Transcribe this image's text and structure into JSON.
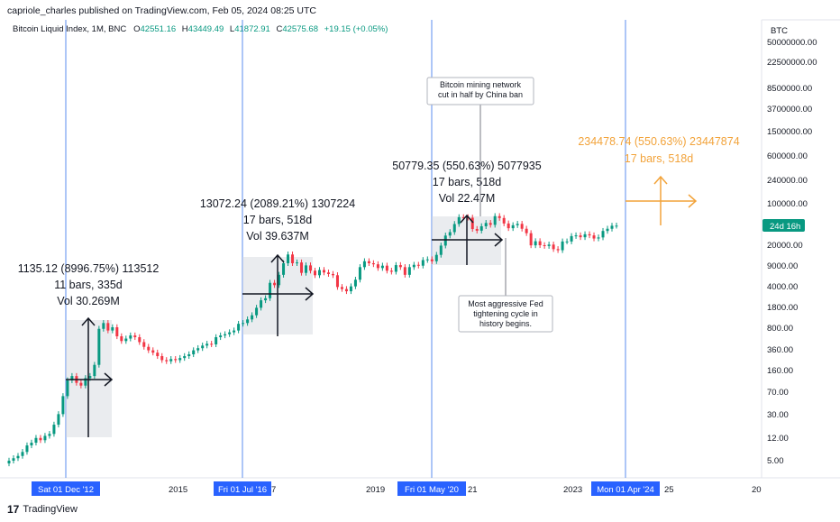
{
  "header": {
    "attribution": "capriole_charles published on TradingView.com, Feb 05, 2024 08:25 UTC"
  },
  "legend": {
    "symbol": "Bitcoin Liquid Index, 1M, BNC",
    "o_label": "O",
    "o_value": "42551.16",
    "h_label": "H",
    "h_value": "43449.49",
    "l_label": "L",
    "l_value": "41872.91",
    "c_label": "C",
    "c_value": "42575.68",
    "change": "+19.15 (+0.05%)"
  },
  "price_axis": {
    "unit": "BTC",
    "current_badge": "24d 16h"
  },
  "footer": {
    "logo_mark": "17",
    "logo_text": "TradingView"
  },
  "colors": {
    "up": "#089981",
    "down": "#f23645",
    "vline": "#5b8def",
    "orange": "#f2a33a",
    "badge": "#2962ff"
  },
  "chart_data": {
    "type": "candlestick",
    "y_scale": "log",
    "y_tick_labels": [
      "50000000.00",
      "22500000.00",
      "8500000.00",
      "3700000.00",
      "1500000.00",
      "600000.00",
      "240000.00",
      "100000.00",
      "20000.00",
      "9000.00",
      "4000.00",
      "1800.00",
      "800.00",
      "360.00",
      "160.00",
      "70.00",
      "30.00",
      "12.00",
      "5.00"
    ],
    "x_tick_labels": [
      "2015",
      "2019",
      "2023",
      "20"
    ],
    "x_cut_labels": [
      "7",
      "21",
      "25"
    ],
    "vertical_markers": [
      {
        "label": "Sat 01 Dec '12"
      },
      {
        "label": "Fri 01 Jul '16"
      },
      {
        "label": "Fri 01 May '20"
      },
      {
        "label": "Mon 01 Apr '24"
      }
    ],
    "annotations": [
      {
        "lines": [
          "1135.12 (8996.75%) 113512",
          "11 bars, 335d",
          "Vol 30.269M"
        ]
      },
      {
        "lines": [
          "13072.24 (2089.21%) 1307224",
          "17 bars, 518d",
          "Vol 39.637M"
        ]
      },
      {
        "lines": [
          "50779.35 (550.63%) 5077935",
          "17 bars, 518d",
          "Vol 22.47M"
        ]
      },
      {
        "lines": [
          "234478.74 (550.63%) 23447874",
          "17 bars, 518d"
        ],
        "projection": true
      }
    ],
    "notes": [
      {
        "lines": [
          "Bitcoin mining network",
          "cut in half by China ban"
        ]
      },
      {
        "lines": [
          "Most aggressive Fed",
          "tightening cycle in",
          "history begins."
        ]
      }
    ],
    "series_monthly_close": [
      5,
      5.5,
      6,
      7,
      9,
      10,
      12,
      11,
      13,
      14,
      20,
      30,
      60,
      110,
      130,
      100,
      90,
      120,
      130,
      200,
      800,
      1000,
      750,
      850,
      600,
      500,
      550,
      620,
      580,
      480,
      400,
      350,
      320,
      280,
      240,
      230,
      250,
      240,
      260,
      280,
      300,
      350,
      380,
      420,
      450,
      440,
      580,
      620,
      650,
      700,
      750,
      970,
      1000,
      1150,
      1350,
      1800,
      2400,
      2600,
      4700,
      4300,
      6400,
      10000,
      14000,
      10000,
      10300,
      6900,
      9200,
      7500,
      6300,
      7700,
      7000,
      6600,
      6300,
      4000,
      3700,
      3400,
      4100,
      5300,
      8600,
      10800,
      10000,
      9600,
      8300,
      9100,
      7500,
      7200,
      9300,
      8600,
      6400,
      8600,
      9400,
      9100,
      11300,
      11600,
      10800,
      13800,
      19700,
      29000,
      33100,
      45200,
      58800,
      58700,
      57700,
      37300,
      35000,
      41500,
      47100,
      43800,
      61300,
      57000,
      46200,
      38500,
      43200,
      45500,
      37700,
      31800,
      19900,
      23300,
      20000,
      19400,
      20500,
      17200,
      16500,
      23100,
      23100,
      28400,
      29200,
      27200,
      30500,
      29200,
      25900,
      27000,
      34600,
      37700,
      42300,
      42500
    ]
  }
}
